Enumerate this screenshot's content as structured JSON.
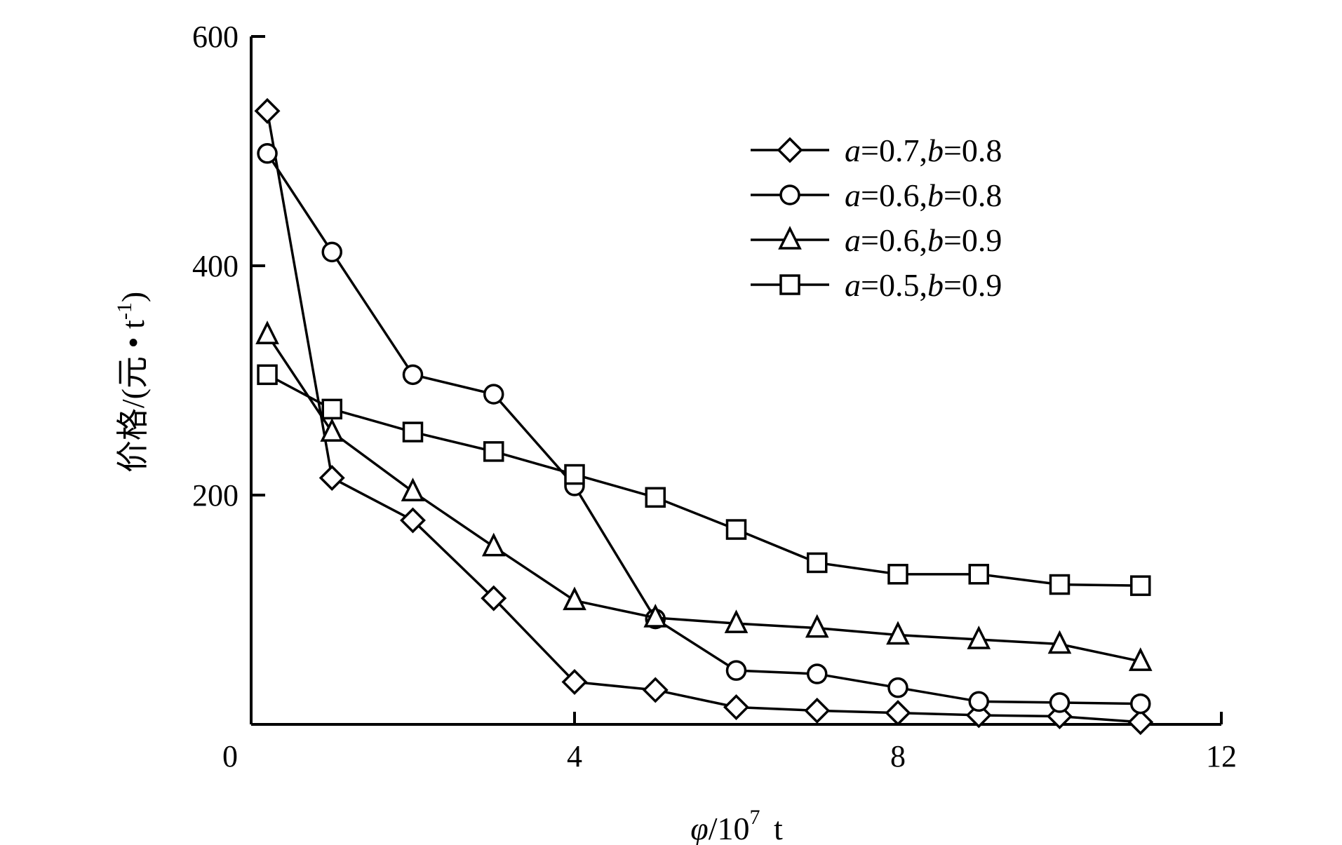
{
  "chart_data": {
    "type": "line",
    "xlabel": {
      "symbol": "φ",
      "rest": "/10",
      "exp": "7",
      "unit": " t"
    },
    "ylabel": {
      "main": "价格/(元 • t",
      "exp": "-1",
      "close": ")"
    },
    "xlim": [
      0,
      12
    ],
    "ylim": [
      0,
      600
    ],
    "xticks": [
      0,
      4,
      8,
      12
    ],
    "yticks": [
      200,
      400,
      600
    ],
    "x_tick_labels": [
      "0",
      "4",
      "8",
      "12"
    ],
    "y_tick_labels": [
      "200",
      "400",
      "600"
    ],
    "grid": false,
    "legend_position": "top-right",
    "series": [
      {
        "name": "a=0.7,b=0.8",
        "marker": "diamond",
        "legend": {
          "a_sym": "a",
          "a_val": "=0.7,",
          "b_sym": "b",
          "b_val": "=0.8"
        },
        "x": [
          0,
          1,
          2,
          3,
          4,
          5,
          6,
          7,
          8,
          9,
          10,
          11
        ],
        "y": [
          535,
          215,
          178,
          110,
          37,
          30,
          15,
          12,
          10,
          8,
          7,
          2
        ]
      },
      {
        "name": "a=0.6,b=0.8",
        "marker": "circle",
        "legend": {
          "a_sym": "a",
          "a_val": "=0.6,",
          "b_sym": "b",
          "b_val": "=0.8"
        },
        "x": [
          0,
          1,
          2,
          3,
          4,
          5,
          6,
          7,
          8,
          9,
          10,
          11
        ],
        "y": [
          498,
          412,
          305,
          288,
          208,
          92,
          47,
          44,
          32,
          20,
          19,
          18
        ]
      },
      {
        "name": "a=0.6,b=0.9",
        "marker": "triangle",
        "legend": {
          "a_sym": "a",
          "a_val": "=0.6,",
          "b_sym": "b",
          "b_val": "=0.9"
        },
        "x": [
          0,
          1,
          2,
          3,
          4,
          5,
          6,
          7,
          8,
          9,
          10,
          11
        ],
        "y": [
          340,
          255,
          203,
          155,
          108,
          93,
          88,
          84,
          78,
          74,
          70,
          55
        ]
      },
      {
        "name": "a=0.5,b=0.9",
        "marker": "square",
        "legend": {
          "a_sym": "a",
          "a_val": "=0.5,",
          "b_sym": "b",
          "b_val": "=0.9"
        },
        "x": [
          0,
          1,
          2,
          3,
          4,
          5,
          6,
          7,
          8,
          9,
          10,
          11
        ],
        "y": [
          305,
          275,
          255,
          238,
          218,
          198,
          170,
          141,
          131,
          131,
          122,
          121
        ]
      }
    ]
  }
}
